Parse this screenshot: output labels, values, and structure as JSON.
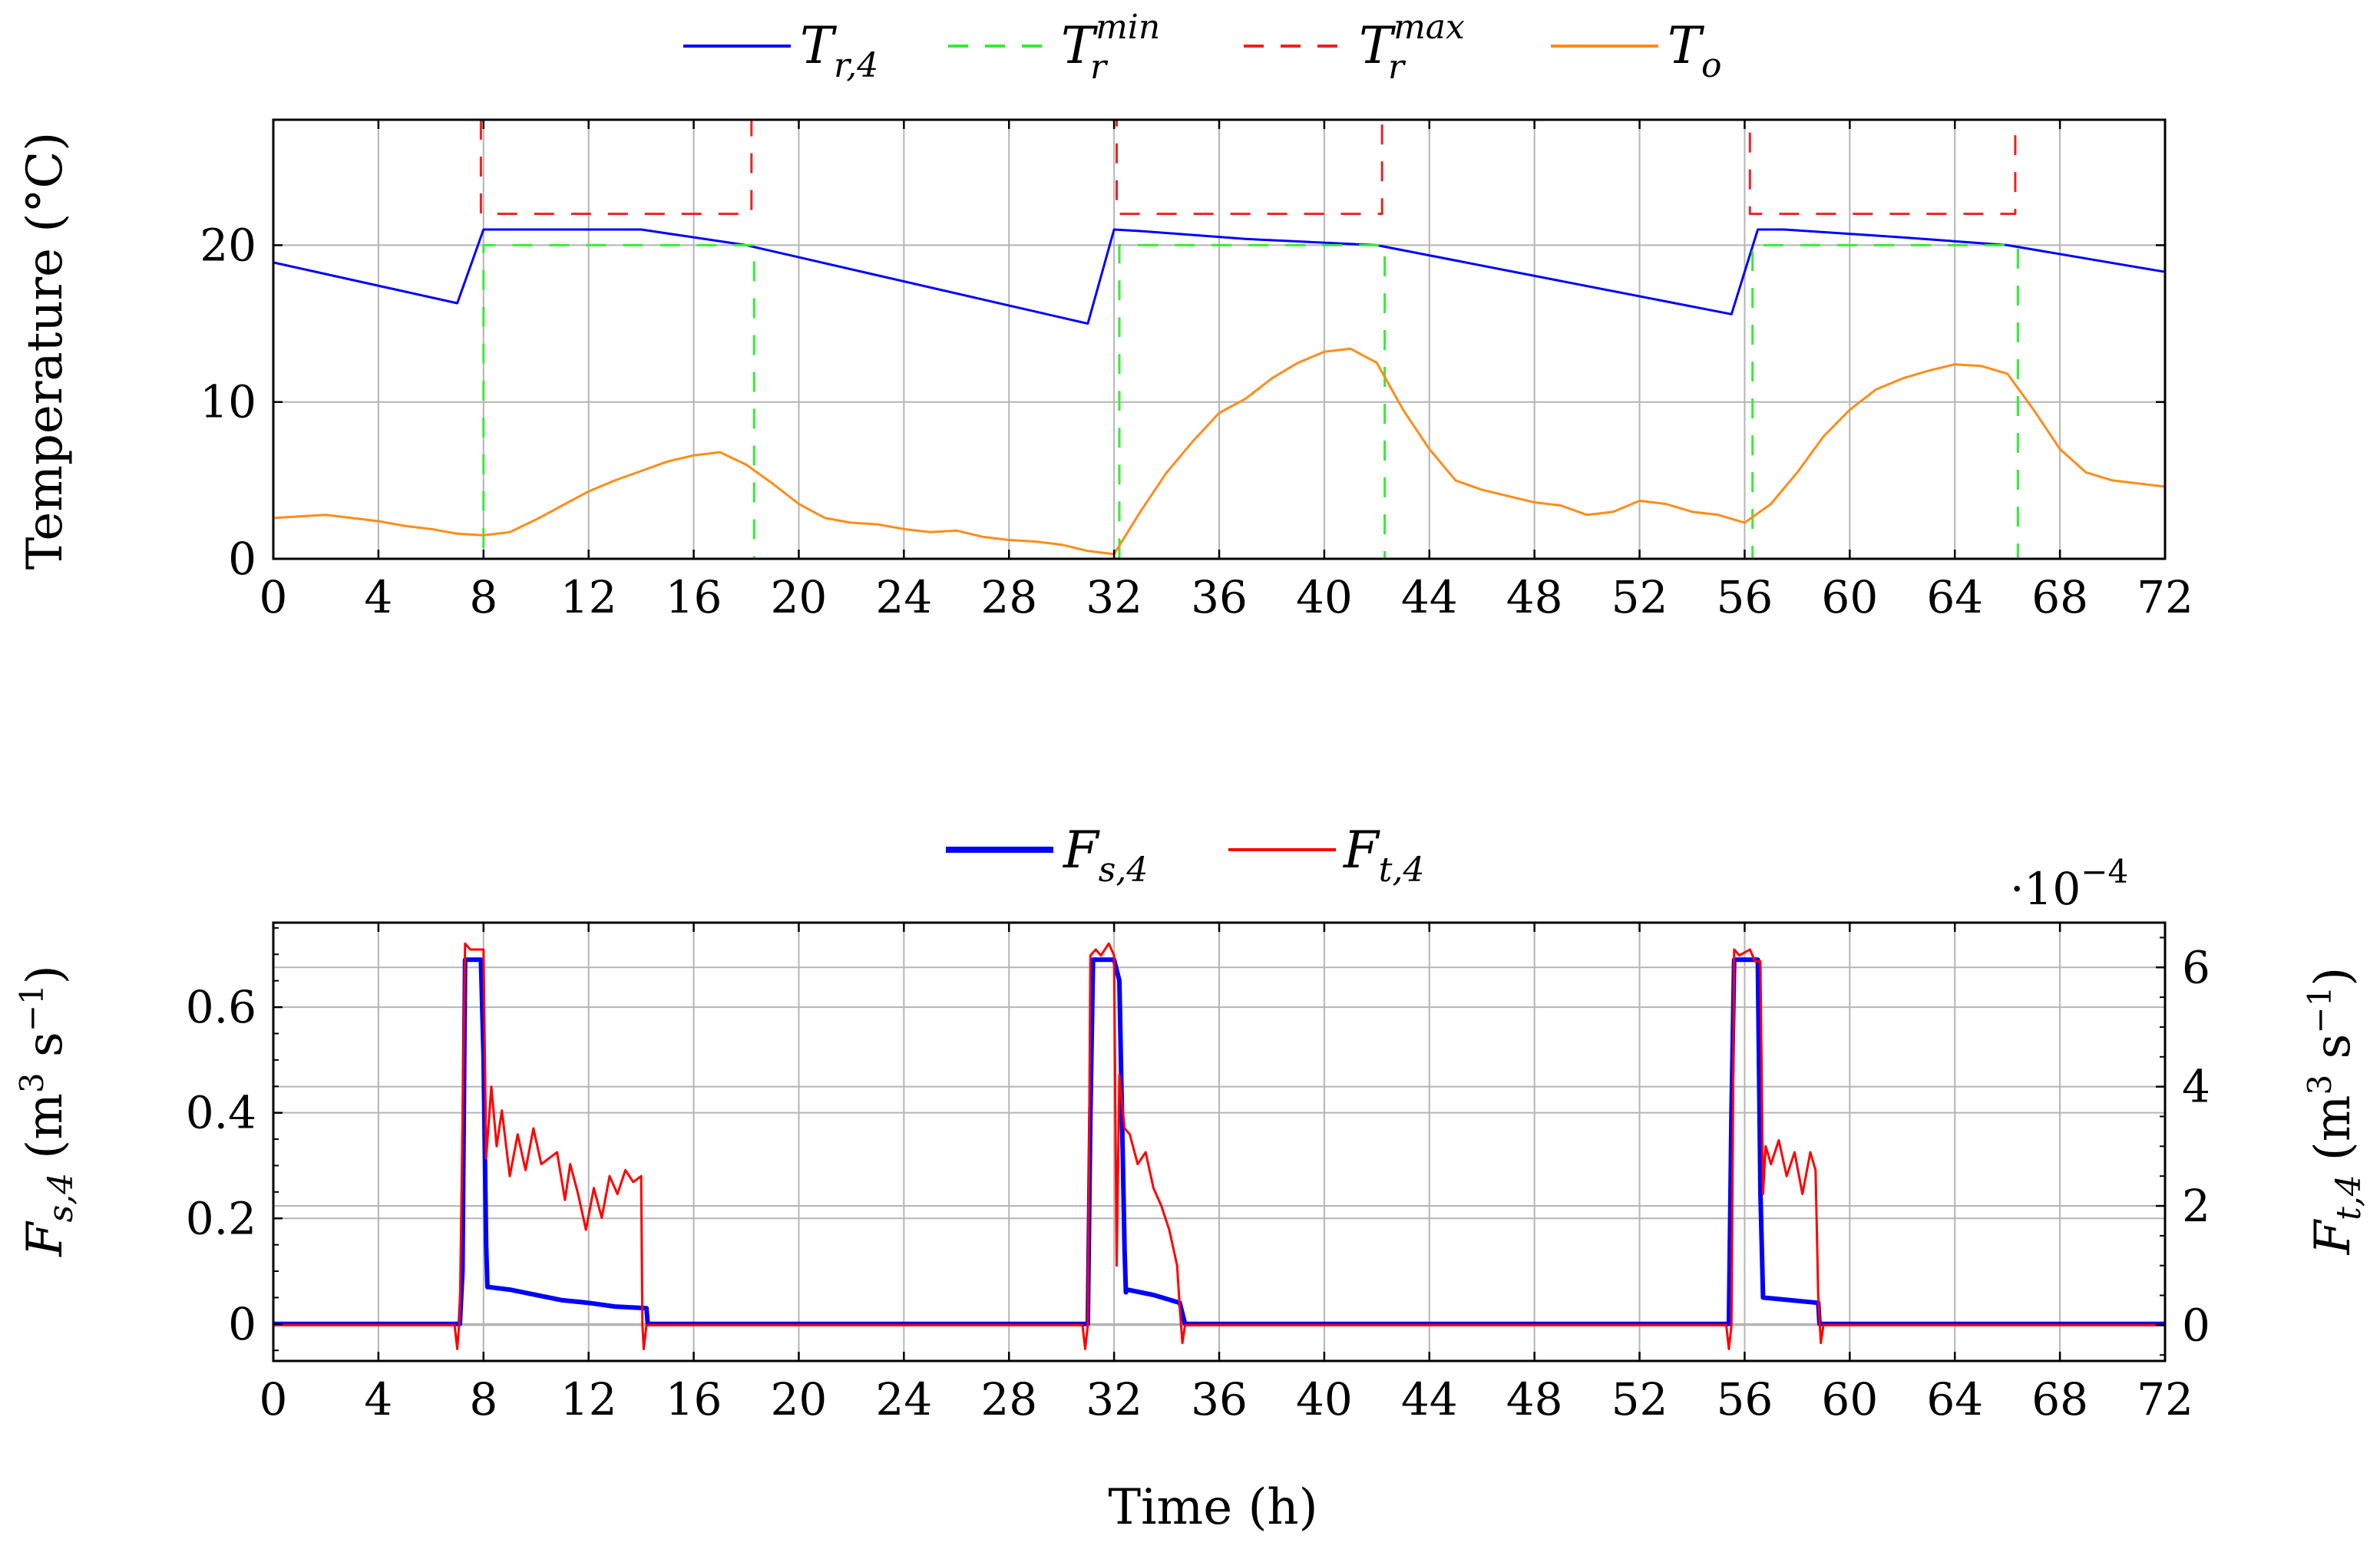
{
  "chart_data": [
    {
      "type": "line",
      "id": "temperature",
      "title": "",
      "xlabel": "",
      "ylabel": "Temperature (°C)",
      "xlim": [
        0,
        72
      ],
      "ylim": [
        0,
        28
      ],
      "xticks": [
        0,
        4,
        8,
        12,
        16,
        20,
        24,
        28,
        32,
        36,
        40,
        44,
        48,
        52,
        56,
        60,
        64,
        68,
        72
      ],
      "yticks": [
        0,
        10,
        20
      ],
      "grid": true,
      "legend_position": "top-center",
      "series": [
        {
          "name": "Tr4",
          "legend_main": "T",
          "legend_sub": "r,4",
          "legend_sup": "",
          "color": "#0000ff",
          "dash": "solid",
          "x": [
            0,
            7,
            8,
            9,
            14,
            18,
            31,
            32,
            33,
            37,
            42,
            55.5,
            56.5,
            57.5,
            62,
            66,
            72
          ],
          "y": [
            18.9,
            16.3,
            21.0,
            21.0,
            21.0,
            20.0,
            15.0,
            21.0,
            20.9,
            20.4,
            20.0,
            15.6,
            21.0,
            21.0,
            20.5,
            20.0,
            18.3
          ]
        },
        {
          "name": "Tr_min",
          "legend_main": "T",
          "legend_sub": "r",
          "legend_sup": "min",
          "color": "#33ee33",
          "dash": "dashed",
          "x": [
            0,
            8,
            8,
            18.3,
            18.3,
            32.2,
            32.2,
            42.3,
            42.3,
            56.3,
            56.3,
            66.4,
            66.4,
            72
          ],
          "y": [
            0,
            0,
            20,
            20,
            0,
            0,
            20,
            20,
            0,
            0,
            20,
            20,
            0,
            0
          ]
        },
        {
          "name": "Tr_max",
          "legend_main": "T",
          "legend_sub": "r",
          "legend_sup": "max",
          "color": "#ee2222",
          "dash": "dashed",
          "x": [
            7.9,
            7.9,
            18.2,
            18.2,
            32.1,
            32.1,
            42.2,
            42.2,
            56.2,
            56.2,
            66.3,
            66.3
          ],
          "y": [
            28,
            22,
            22,
            28,
            28,
            22,
            22,
            28,
            28,
            22,
            22,
            28
          ]
        },
        {
          "name": "To",
          "legend_main": "T",
          "legend_sub": "o",
          "legend_sup": "",
          "color": "#ff8c1a",
          "dash": "solid",
          "x": [
            0,
            1,
            2,
            3,
            4,
            5,
            6,
            7,
            8,
            9,
            10,
            11,
            12,
            13,
            14,
            15,
            16,
            17,
            18,
            19,
            20,
            21,
            22,
            23,
            24,
            25,
            26,
            27,
            28,
            29,
            30,
            31,
            32,
            33,
            34,
            35,
            36,
            37,
            38,
            39,
            40,
            41,
            42,
            43,
            44,
            45,
            46,
            47,
            48,
            49,
            50,
            51,
            52,
            53,
            54,
            55,
            56,
            57,
            58,
            59,
            60,
            61,
            62,
            63,
            64,
            65,
            66,
            67,
            68,
            69,
            70,
            71,
            72
          ],
          "y": [
            2.6,
            2.7,
            2.8,
            2.6,
            2.4,
            2.1,
            1.9,
            1.6,
            1.5,
            1.7,
            2.5,
            3.4,
            4.3,
            5.0,
            5.6,
            6.2,
            6.6,
            6.8,
            6.0,
            4.8,
            3.5,
            2.6,
            2.3,
            2.2,
            1.9,
            1.7,
            1.8,
            1.4,
            1.2,
            1.1,
            0.9,
            0.5,
            0.3,
            3.0,
            5.5,
            7.5,
            9.3,
            10.2,
            11.5,
            12.5,
            13.2,
            13.4,
            12.5,
            9.5,
            7.0,
            5.0,
            4.4,
            4.0,
            3.6,
            3.4,
            2.8,
            3.0,
            3.7,
            3.5,
            3.0,
            2.8,
            2.3,
            3.5,
            5.5,
            7.8,
            9.5,
            10.8,
            11.5,
            12.0,
            12.4,
            12.3,
            11.8,
            9.5,
            7.0,
            5.5,
            5.0,
            4.8,
            4.6
          ]
        }
      ]
    },
    {
      "type": "line",
      "id": "flow",
      "title": "",
      "xlabel": "Time (h)",
      "ylabel_left": "F",
      "ylabel_left_sub": "s,4",
      "ylabel_right": "F",
      "ylabel_right_sub": "t,4",
      "ylabel_units": "(m",
      "ylabel_units_mid": " s",
      "ylabel_units_end": ")",
      "unit_sup_3": "3",
      "unit_sup_neg1": "−1",
      "xlim": [
        0,
        72
      ],
      "ylim_left": [
        -0.07,
        0.76
      ],
      "ylim_right": [
        -0.6,
        6.75
      ],
      "xticks": [
        0,
        4,
        8,
        12,
        16,
        20,
        24,
        28,
        32,
        36,
        40,
        44,
        48,
        52,
        56,
        60,
        64,
        68,
        72
      ],
      "yticks_left": [
        "0",
        "0.2",
        "0.4",
        "0.6"
      ],
      "yticks_left_values": [
        0,
        0.2,
        0.4,
        0.6
      ],
      "yticks_right": [
        "0",
        "2",
        "4",
        "6"
      ],
      "yticks_right_values": [
        0,
        2,
        4,
        6
      ],
      "right_axis_scale_base": "·10",
      "right_axis_scale_exp": "−4",
      "grid": true,
      "legend_position": "top-center",
      "series": [
        {
          "name": "Fs4",
          "legend_main": "F",
          "legend_sub": "s,4",
          "color": "#0000ff",
          "axis": "left",
          "width": "thick",
          "x": [
            0,
            7.1,
            7.2,
            7.3,
            7.9,
            8.0,
            8.1,
            8.15,
            8.2,
            9,
            10,
            11,
            12,
            13,
            14.2,
            14.25,
            31,
            31.1,
            31.2,
            32,
            32.2,
            32.4,
            32.45,
            32.5,
            33.5,
            34.5,
            34.6,
            34.7,
            55.4,
            55.5,
            55.6,
            56.1,
            56.5,
            56.6,
            56.7,
            58.8,
            58.85,
            72
          ],
          "y": [
            0,
            0,
            0.1,
            0.69,
            0.69,
            0.51,
            0.15,
            0.07,
            0.07,
            0.065,
            0.055,
            0.045,
            0.04,
            0.033,
            0.03,
            0,
            0,
            0.4,
            0.69,
            0.69,
            0.65,
            0.14,
            0.06,
            0.065,
            0.055,
            0.04,
            0.02,
            0,
            0,
            0.4,
            0.69,
            0.69,
            0.69,
            0.25,
            0.05,
            0.04,
            0,
            0
          ]
        },
        {
          "name": "Ft4",
          "legend_main": "F",
          "legend_sub": "t,4",
          "color": "#ff0000",
          "axis": "right",
          "width": "thin",
          "x": [
            0,
            6.9,
            7.0,
            7.1,
            7.3,
            7.5,
            7.7,
            8.0,
            8.1,
            8.3,
            8.5,
            8.7,
            9.0,
            9.3,
            9.6,
            9.9,
            10.2,
            10.5,
            10.8,
            11.1,
            11.3,
            11.6,
            11.9,
            12.2,
            12.5,
            12.8,
            13.1,
            13.4,
            13.7,
            14.0,
            14.05,
            14.1,
            14.2,
            14.3,
            30.8,
            30.9,
            31.0,
            31.1,
            31.3,
            31.5,
            31.8,
            32.0,
            32.1,
            32.2,
            32.4,
            32.6,
            32.9,
            33.2,
            33.5,
            33.8,
            34.1,
            34.4,
            34.5,
            34.6,
            34.7,
            55.3,
            55.4,
            55.5,
            55.6,
            55.8,
            56.2,
            56.4,
            56.6,
            56.7,
            56.8,
            57.0,
            57.3,
            57.6,
            57.9,
            58.2,
            58.5,
            58.7,
            58.8,
            58.9,
            59.0,
            72
          ],
          "y": [
            0,
            0,
            -0.4,
            0.2,
            6.4,
            6.3,
            6.3,
            6.3,
            2.8,
            4.0,
            3.0,
            3.6,
            2.5,
            3.2,
            2.6,
            3.3,
            2.7,
            2.8,
            2.9,
            2.1,
            2.7,
            2.2,
            1.6,
            2.3,
            1.8,
            2.5,
            2.2,
            2.6,
            2.4,
            2.5,
            0,
            -0.4,
            0,
            0,
            0,
            -0.4,
            0,
            6.2,
            6.3,
            6.2,
            6.4,
            6.2,
            1.0,
            4.2,
            3.3,
            3.2,
            2.7,
            2.9,
            2.3,
            2.0,
            1.6,
            1.0,
            0.3,
            -0.3,
            0,
            0,
            -0.4,
            0,
            6.3,
            6.2,
            6.3,
            6.1,
            6.1,
            2.2,
            3.0,
            2.7,
            3.1,
            2.5,
            2.9,
            2.2,
            2.9,
            2.6,
            0.5,
            -0.3,
            0,
            0
          ]
        }
      ]
    }
  ]
}
